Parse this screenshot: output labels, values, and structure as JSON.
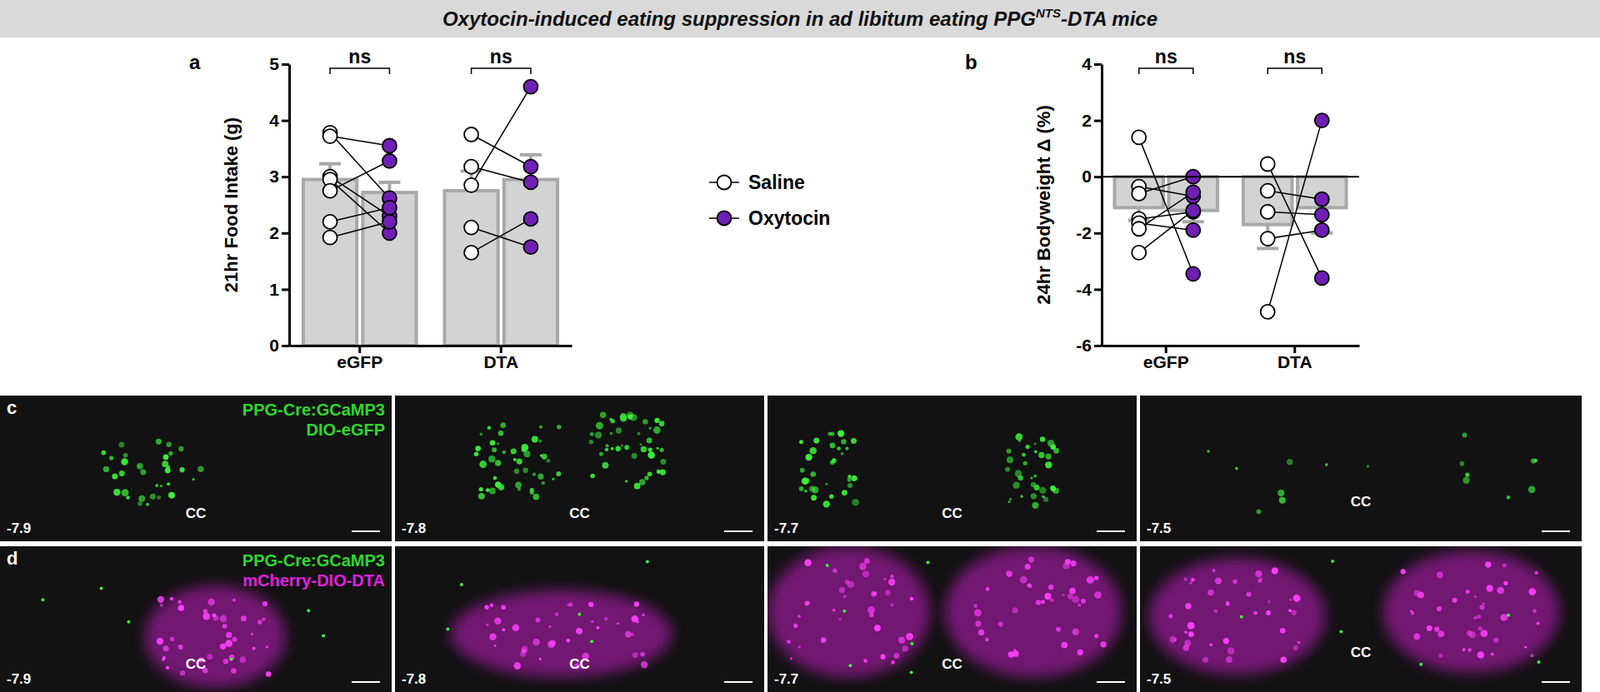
{
  "header": {
    "title": "Oxytocin-induced eating suppression in ad libitum eating PPG",
    "title_superscript": "NTS",
    "title_suffix": "-DTA mice"
  },
  "chart_data": [
    {
      "panel": "a",
      "type": "bar",
      "ylabel": "21hr Food Intake (g)",
      "categories": [
        "eGFP",
        "DTA"
      ],
      "series": [
        {
          "name": "Saline",
          "color": "#ffffff",
          "values": [
            2.95,
            2.75
          ],
          "errors": [
            0.28,
            0.35
          ],
          "points": [
            [
              3.78,
              3.72,
              3.0,
              2.95,
              2.75,
              2.2,
              1.92
            ],
            [
              3.75,
              3.18,
              2.85,
              2.1,
              1.65
            ]
          ]
        },
        {
          "name": "Oxytocin",
          "color": "#6f1fb3",
          "values": [
            2.72,
            2.95
          ],
          "errors": [
            0.18,
            0.44
          ],
          "points": [
            [
              2.62,
              3.55,
              2.3,
              2.0,
              3.28,
              2.45,
              2.2
            ],
            [
              3.18,
              2.9,
              4.6,
              1.75,
              2.25
            ]
          ]
        }
      ],
      "ylim": [
        0,
        5
      ],
      "yticks": [
        0,
        1,
        2,
        3,
        4,
        5
      ],
      "significance": [
        "ns",
        "ns"
      ],
      "legend": "right"
    },
    {
      "panel": "b",
      "type": "bar",
      "ylabel": "24hr Bodyweight Δ (%)",
      "categories": [
        "eGFP",
        "DTA"
      ],
      "series": [
        {
          "color": "#ffffff",
          "values": [
            -1.1,
            -1.7
          ],
          "errors": [
            0.45,
            0.85
          ],
          "points": [
            [
              1.4,
              -0.35,
              -0.6,
              -1.5,
              -1.65,
              -1.85,
              -2.7
            ],
            [
              0.45,
              -0.5,
              -1.25,
              -2.2,
              -4.8
            ]
          ]
        },
        {
          "color": "#6f1fb3",
          "values": [
            -1.2,
            -1.1
          ],
          "errors": [
            0.4,
            0.9
          ],
          "points": [
            [
              -3.45,
              -0.7,
              0.0,
              -1.25,
              -1.9,
              -0.55,
              -1.2
            ],
            [
              -3.6,
              -0.8,
              -1.35,
              -1.9,
              2.0
            ]
          ]
        }
      ],
      "ylim": [
        -6,
        4
      ],
      "yticks": [
        -6,
        -4,
        -2,
        0,
        2,
        4
      ],
      "significance": [
        "ns",
        "ns"
      ]
    }
  ],
  "images": [
    {
      "panel": "c",
      "channels": [
        {
          "text": "PPG-Cre:GCaMP3",
          "color": "#2fd62f"
        },
        {
          "text": "DIO-eGFP",
          "color": "#2fd62f"
        }
      ],
      "tiles": [
        {
          "level": "-7.9",
          "landmark": "CC"
        },
        {
          "level": "-7.8",
          "landmark": "CC"
        },
        {
          "level": "-7.7",
          "landmark": "CC"
        },
        {
          "level": "-7.5",
          "landmark": "CC"
        }
      ]
    },
    {
      "panel": "d",
      "channels": [
        {
          "text": "PPG-Cre:GCaMP3",
          "color": "#2fd62f"
        },
        {
          "text": "mCherry-DIO-DTA",
          "color": "#e020e0"
        }
      ],
      "tiles": [
        {
          "level": "-7.9",
          "landmark": "CC"
        },
        {
          "level": "-7.8",
          "landmark": "CC"
        },
        {
          "level": "-7.7",
          "landmark": "CC"
        },
        {
          "level": "-7.5",
          "landmark": "CC"
        }
      ]
    }
  ]
}
